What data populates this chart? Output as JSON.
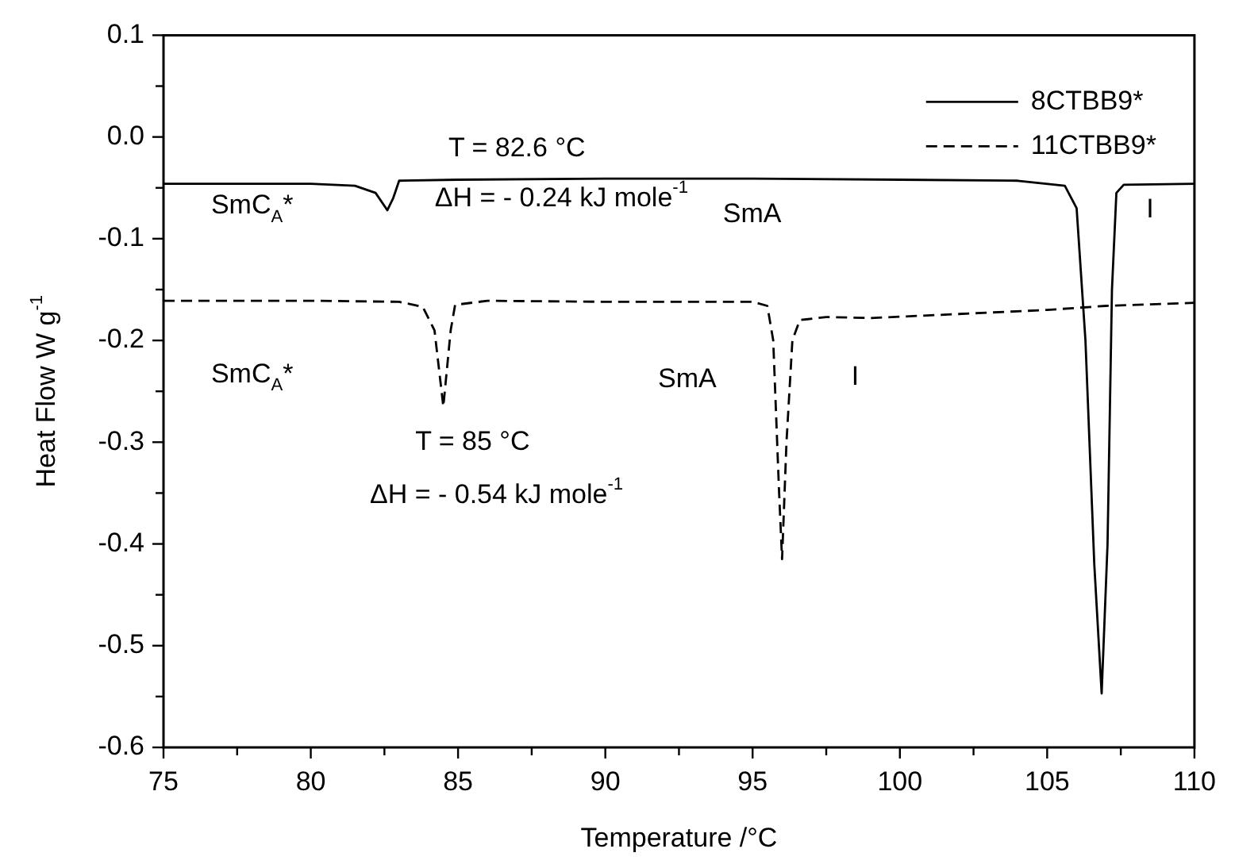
{
  "chart_data": {
    "type": "line",
    "xlabel": "Temperature /°C",
    "ylabel": "Heat Flow W g$^{-1}$",
    "xlim": [
      75,
      110
    ],
    "xticks": [
      75,
      {
        "value": 77.5,
        "label": null
      },
      80,
      {
        "value": 82.5,
        "label": null
      },
      85,
      {
        "value": 87.5,
        "label": null
      },
      90,
      {
        "value": 92.5,
        "label": null
      },
      95,
      {
        "value": 97.5,
        "label": null
      },
      100,
      {
        "value": 102.5,
        "label": null
      },
      105,
      {
        "value": 107.5,
        "label": null
      },
      110
    ],
    "ylim": [
      -0.6,
      0.1
    ],
    "yticks": [
      -0.6,
      {
        "value": -0.55,
        "label": null
      },
      -0.5,
      {
        "value": -0.45,
        "label": null
      },
      -0.4,
      {
        "value": -0.35,
        "label": null
      },
      -0.3,
      {
        "value": -0.25,
        "label": null
      },
      -0.2,
      {
        "value": -0.15,
        "label": null
      },
      -0.1,
      {
        "value": -0.05,
        "label": null
      },
      {
        "value": 0,
        "label": "0.0"
      },
      {
        "value": 0.05,
        "label": null
      },
      0.1
    ],
    "grid": false,
    "legend": "top right",
    "marker": "none",
    "series": [
      {
        "name": "8CTBB9*",
        "color": "#000000",
        "line_style": "solid",
        "x": [
          75,
          78,
          80,
          81.5,
          82.2,
          82.6,
          82.8,
          83,
          85,
          90,
          95,
          100,
          104,
          105.6,
          106,
          106.3,
          106.6,
          106.85,
          107.05,
          107.2,
          107.35,
          107.6,
          110
        ],
        "values": [
          -0.046,
          -0.046,
          -0.046,
          -0.048,
          -0.055,
          -0.072,
          -0.06,
          -0.043,
          -0.042,
          -0.041,
          -0.041,
          -0.042,
          -0.043,
          -0.048,
          -0.07,
          -0.2,
          -0.42,
          -0.547,
          -0.4,
          -0.15,
          -0.055,
          -0.047,
          -0.046
        ]
      },
      {
        "name": "11CTBB9*",
        "color": "#000000",
        "line_style": "dashed",
        "x": [
          75,
          80,
          83,
          83.8,
          84.2,
          84.5,
          84.75,
          84.9,
          86,
          90,
          95,
          95.5,
          95.7,
          95.9,
          96.0,
          96.15,
          96.35,
          96.6,
          97.5,
          99,
          102,
          105,
          107,
          110
        ],
        "values": [
          -0.161,
          -0.161,
          -0.162,
          -0.167,
          -0.19,
          -0.265,
          -0.19,
          -0.165,
          -0.161,
          -0.162,
          -0.162,
          -0.166,
          -0.2,
          -0.35,
          -0.415,
          -0.3,
          -0.2,
          -0.18,
          -0.177,
          -0.178,
          -0.174,
          -0.17,
          -0.166,
          -0.163
        ]
      }
    ],
    "annotations": [
      "T = 82.6 °C",
      "ΔH = - 0.24 kJ mole$^{-1}$",
      "SmC$_{A}$*",
      "SmA",
      "I",
      "SmC$_{A}$*",
      "SmA",
      "I",
      "T = 85 °C",
      "ΔH = - 0.54 kJ mole$^{-1}$"
    ]
  }
}
